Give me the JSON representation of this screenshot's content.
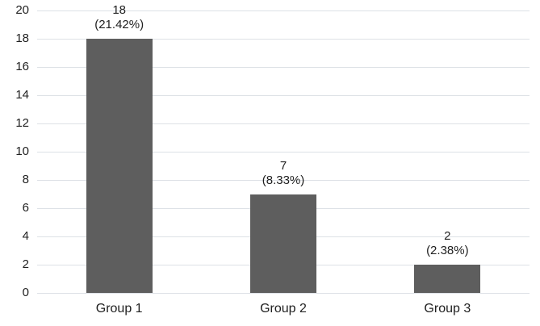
{
  "chart_data": {
    "type": "bar",
    "title": "",
    "xlabel": "",
    "ylabel": "",
    "categories": [
      "Group 1",
      "Group 2",
      "Group 3"
    ],
    "values": [
      18,
      7,
      2
    ],
    "bar_labels": [
      {
        "value": "18",
        "percent": "(21.42%)"
      },
      {
        "value": "7",
        "percent": "(8.33%)"
      },
      {
        "value": "2",
        "percent": "(2.38%)"
      }
    ],
    "ylim": [
      0,
      20
    ],
    "ytick_step": 2,
    "ytick_labels": [
      "0",
      "2",
      "4",
      "6",
      "8",
      "10",
      "12",
      "14",
      "16",
      "18",
      "20"
    ],
    "grid": true,
    "legend": null,
    "colors": {
      "bar": "#5e5e5e",
      "gridline": "#dde1e6",
      "text": "#212121"
    }
  }
}
